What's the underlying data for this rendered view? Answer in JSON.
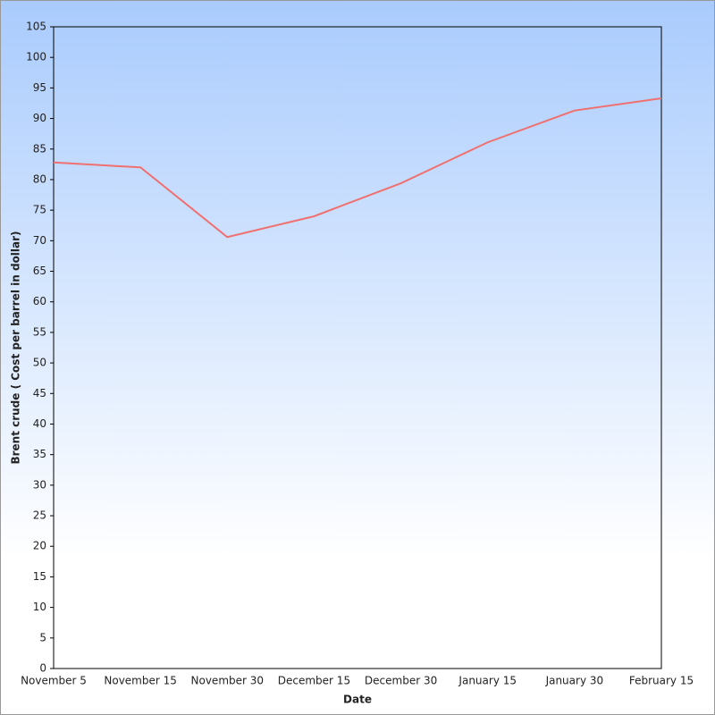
{
  "chart_data": {
    "type": "line",
    "x_label": "Date",
    "y_label": "Brent crude ( Cost per barrel in dollar)",
    "categories": [
      "November 5",
      "November 15",
      "November 30",
      "December 15",
      "December 30",
      "January 15",
      "January 30",
      "February 15"
    ],
    "series": [
      {
        "name": "Brent crude",
        "color": "#f07070",
        "values": [
          82.8,
          82.0,
          70.6,
          74.0,
          79.4,
          86.1,
          91.3,
          93.3
        ]
      }
    ],
    "ylim": [
      0,
      105
    ],
    "yticks": [
      0,
      5,
      10,
      15,
      20,
      25,
      30,
      35,
      40,
      45,
      50,
      55,
      60,
      65,
      70,
      75,
      80,
      85,
      90,
      95,
      100,
      105
    ],
    "grid": false
  }
}
